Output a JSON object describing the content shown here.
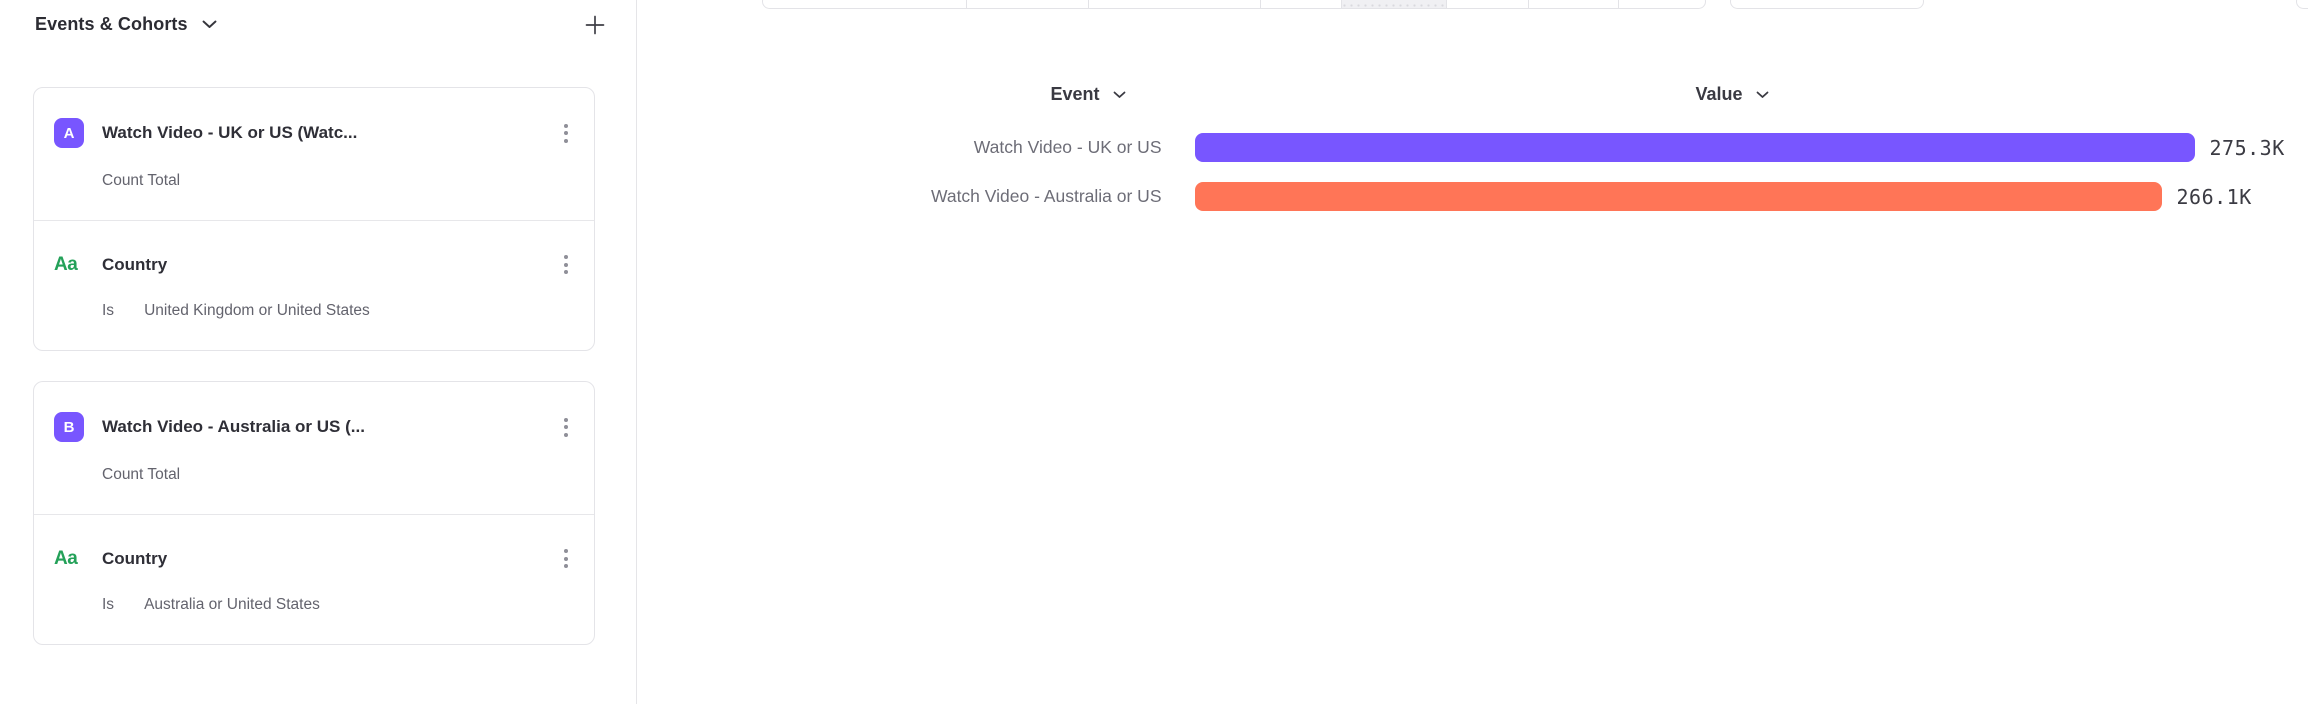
{
  "sidebar": {
    "title": "Events & Cohorts",
    "add_button": "+",
    "groups": [
      {
        "badge": "A",
        "title": "Watch Video - UK or US (Watc...",
        "measure": "Count Total",
        "property": {
          "icon": "Aa",
          "name": "Country",
          "operator": "Is",
          "value": "United Kingdom or United States"
        }
      },
      {
        "badge": "B",
        "title": "Watch Video - Australia or US (...",
        "measure": "Count Total",
        "property": {
          "icon": "Aa",
          "name": "Country",
          "operator": "Is",
          "value": "Australia or United States"
        }
      }
    ]
  },
  "main": {
    "column_headers": {
      "event": "Event",
      "value": "Value"
    }
  },
  "chart_data": {
    "type": "bar",
    "orientation": "horizontal",
    "categories": [
      "Watch Video - UK or US",
      "Watch Video - Australia or US"
    ],
    "values": [
      275300,
      266100
    ],
    "value_labels": [
      "275.3K",
      "266.1K"
    ],
    "series_colors": [
      "#7856FF",
      "#FF7557"
    ],
    "xlim": [
      0,
      275300
    ],
    "grid": false,
    "legend": "none",
    "title": "",
    "xlabel": "",
    "ylabel": ""
  },
  "colors": {
    "series_a_purple": "#7856FF",
    "series_b_coral": "#FF7557",
    "badge_purple": "#7856FF",
    "property_green": "#24A159",
    "border_gray": "#E4E4E8"
  }
}
